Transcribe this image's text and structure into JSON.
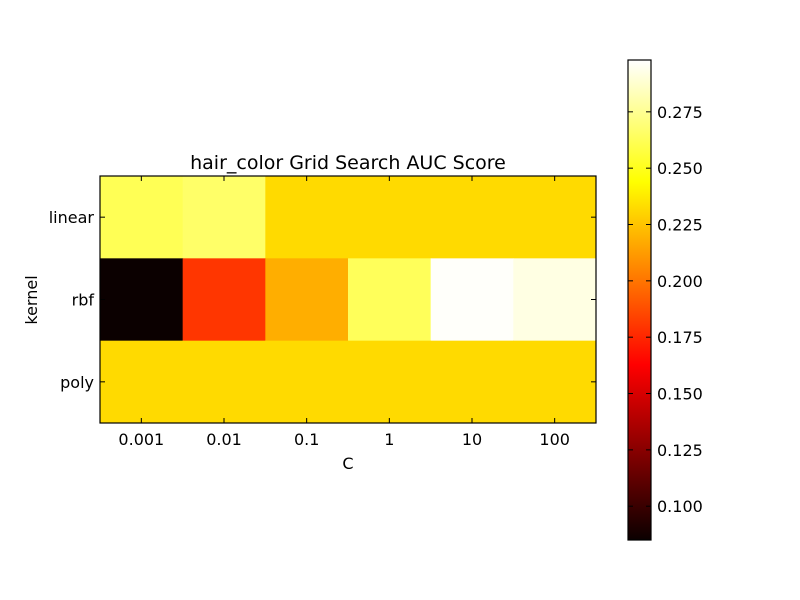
{
  "chart_data": {
    "type": "heatmap",
    "title": "hair_color Grid Search AUC Score",
    "xlabel": "C",
    "ylabel": "kernel",
    "x_categories": [
      "0.001",
      "0.01",
      "0.1",
      "1",
      "10",
      "100"
    ],
    "y_categories": [
      "linear",
      "rbf",
      "poly"
    ],
    "values": [
      [
        0.262,
        0.266,
        0.232,
        0.232,
        0.232,
        0.232
      ],
      [
        0.085,
        0.18,
        0.218,
        0.263,
        0.297,
        0.292
      ],
      [
        0.232,
        0.232,
        0.232,
        0.232,
        0.232,
        0.232
      ]
    ],
    "colormap": "hot",
    "colorbar": {
      "vmin": 0.085,
      "vmax": 0.298,
      "ticks": [
        0.1,
        0.125,
        0.15,
        0.175,
        0.2,
        0.225,
        0.25,
        0.275
      ],
      "tick_labels": [
        "0.100",
        "0.125",
        "0.150",
        "0.175",
        "0.200",
        "0.225",
        "0.250",
        "0.275"
      ]
    },
    "grid": false
  }
}
